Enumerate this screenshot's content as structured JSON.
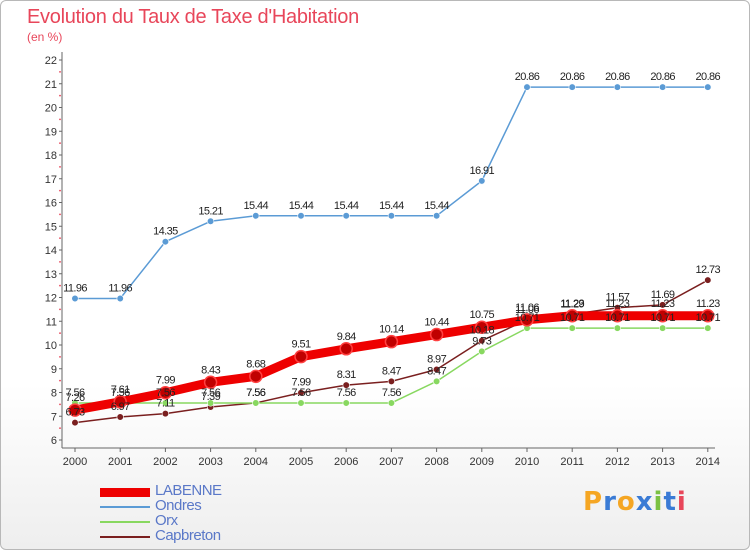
{
  "header": {
    "title": "Evolution du Taux de Taxe d'Habitation",
    "unit": "(en %)"
  },
  "chart_data": {
    "type": "line",
    "title": "Evolution du Taux de Taxe d'Habitation",
    "ylabel": "(en %)",
    "xlabel": "",
    "x": [
      "2000",
      "2001",
      "2002",
      "2003",
      "2004",
      "2005",
      "2006",
      "2007",
      "2008",
      "2009",
      "2010",
      "2011",
      "2012",
      "2013",
      "2014"
    ],
    "yticks": [
      6,
      7,
      8,
      9,
      10,
      11,
      12,
      13,
      14,
      15,
      16,
      17,
      18,
      19,
      20,
      21,
      22
    ],
    "ylim": [
      6,
      22
    ],
    "grid": false,
    "legend_position": "bottom-left",
    "series": [
      {
        "name": "LABENNE",
        "color": "#ee0000",
        "values": [
          7.26,
          7.61,
          7.99,
          8.43,
          8.68,
          9.51,
          9.84,
          10.14,
          10.44,
          10.75,
          11.06,
          11.23,
          11.23,
          11.23,
          11.23
        ]
      },
      {
        "name": "Ondres",
        "color": "#5b9bd5",
        "values": [
          11.96,
          11.96,
          14.35,
          15.21,
          15.44,
          15.44,
          15.44,
          15.44,
          15.44,
          16.91,
          20.86,
          20.86,
          20.86,
          20.86,
          20.86
        ]
      },
      {
        "name": "Orx",
        "color": "#88d860",
        "values": [
          7.56,
          7.56,
          7.56,
          7.56,
          7.56,
          7.56,
          7.56,
          7.56,
          8.47,
          9.73,
          10.71,
          10.71,
          10.71,
          10.71,
          10.71
        ]
      },
      {
        "name": "Capbreton",
        "color": "#7a1f1f",
        "values": [
          6.73,
          6.97,
          7.11,
          7.39,
          7.56,
          7.99,
          8.31,
          8.47,
          8.97,
          10.18,
          11.06,
          11.29,
          11.57,
          11.69,
          12.73
        ]
      }
    ]
  },
  "legend": [
    {
      "label": "LABENNE",
      "color": "#ee0000"
    },
    {
      "label": "Ondres",
      "color": "#5b9bd5"
    },
    {
      "label": "Orx",
      "color": "#88d860"
    },
    {
      "label": "Capbreton",
      "color": "#7a1f1f"
    }
  ],
  "logo": {
    "letters": [
      "P",
      "r",
      "o",
      "x",
      "i",
      "t",
      "i"
    ],
    "colors": [
      "#f5a623",
      "#3a7bd5",
      "#f5a623",
      "#3a7bd5",
      "#7bc142",
      "#3a7bd5",
      "#e8465a"
    ]
  }
}
